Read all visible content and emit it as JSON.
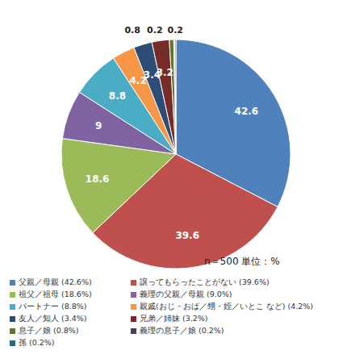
{
  "chart_data": {
    "type": "pie",
    "categories": [
      "父親／母親 (42.6%)",
      "譲ってもらったことがない (39.6%)",
      "祖父／祖母 (18.6%)",
      "義理の父親／母親 (9.0%)",
      "パートナー (8.8%)",
      "親戚(おじ・おば／甥・姪／いとこ など) (4.2%)",
      "友人／知人 (3.4%)",
      "兄弟／姉妹 (3.2%)",
      "息子／娘 (0.8%)",
      "義理の息子／娘 (0.2%)",
      "孫 (0.2%)"
    ],
    "values": [
      42.6,
      39.6,
      18.6,
      9,
      8.8,
      4.2,
      3.4,
      3.2,
      0.8,
      0.2,
      0.2
    ],
    "colors": [
      "#4f81bd",
      "#c0504d",
      "#9bbb59",
      "#8064a2",
      "#4bacc6",
      "#f79646",
      "#2c4d75",
      "#772c2a",
      "#5f7530",
      "#4d3b62",
      "#276a7c"
    ],
    "data_labels": true,
    "legend": "bottom",
    "annotation": "n＝500 単位：%"
  }
}
